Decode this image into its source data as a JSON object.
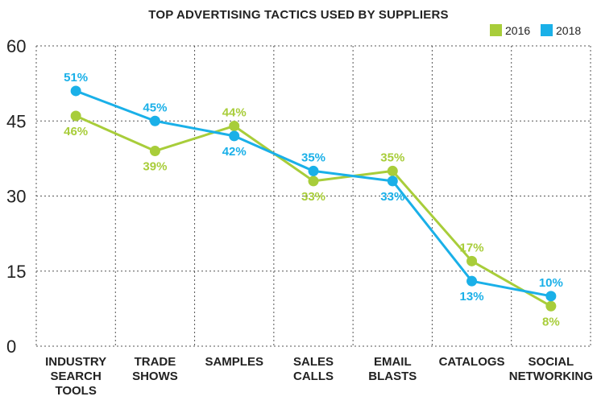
{
  "chart_data": {
    "type": "line",
    "title": "TOP ADVERTISING TACTICS USED BY SUPPLIERS",
    "xlabel": "",
    "ylabel": "",
    "ylim": [
      0,
      60
    ],
    "yticks": [
      0,
      15,
      30,
      45,
      60
    ],
    "grid": true,
    "legend_position": "top-right",
    "categories": [
      [
        "INDUSTRY",
        "SEARCH",
        "TOOLS"
      ],
      [
        "TRADE",
        "SHOWS"
      ],
      [
        "SAMPLES"
      ],
      [
        "SALES",
        "CALLS"
      ],
      [
        "EMAIL",
        "BLASTS"
      ],
      [
        "CATALOGS"
      ],
      [
        "SOCIAL",
        "NETWORKING"
      ]
    ],
    "series": [
      {
        "name": "2016",
        "color": "#a8cd3a",
        "values": [
          46,
          39,
          44,
          33,
          35,
          17,
          8
        ],
        "labels": [
          "46%",
          "39%",
          "44%",
          "33%",
          "35%",
          "17%",
          "8%"
        ]
      },
      {
        "name": "2018",
        "color": "#1ab0e8",
        "values": [
          51,
          45,
          42,
          35,
          33,
          13,
          10
        ],
        "labels": [
          "51%",
          "45%",
          "42%",
          "35%",
          "33%",
          "13%",
          "10%"
        ]
      }
    ]
  }
}
